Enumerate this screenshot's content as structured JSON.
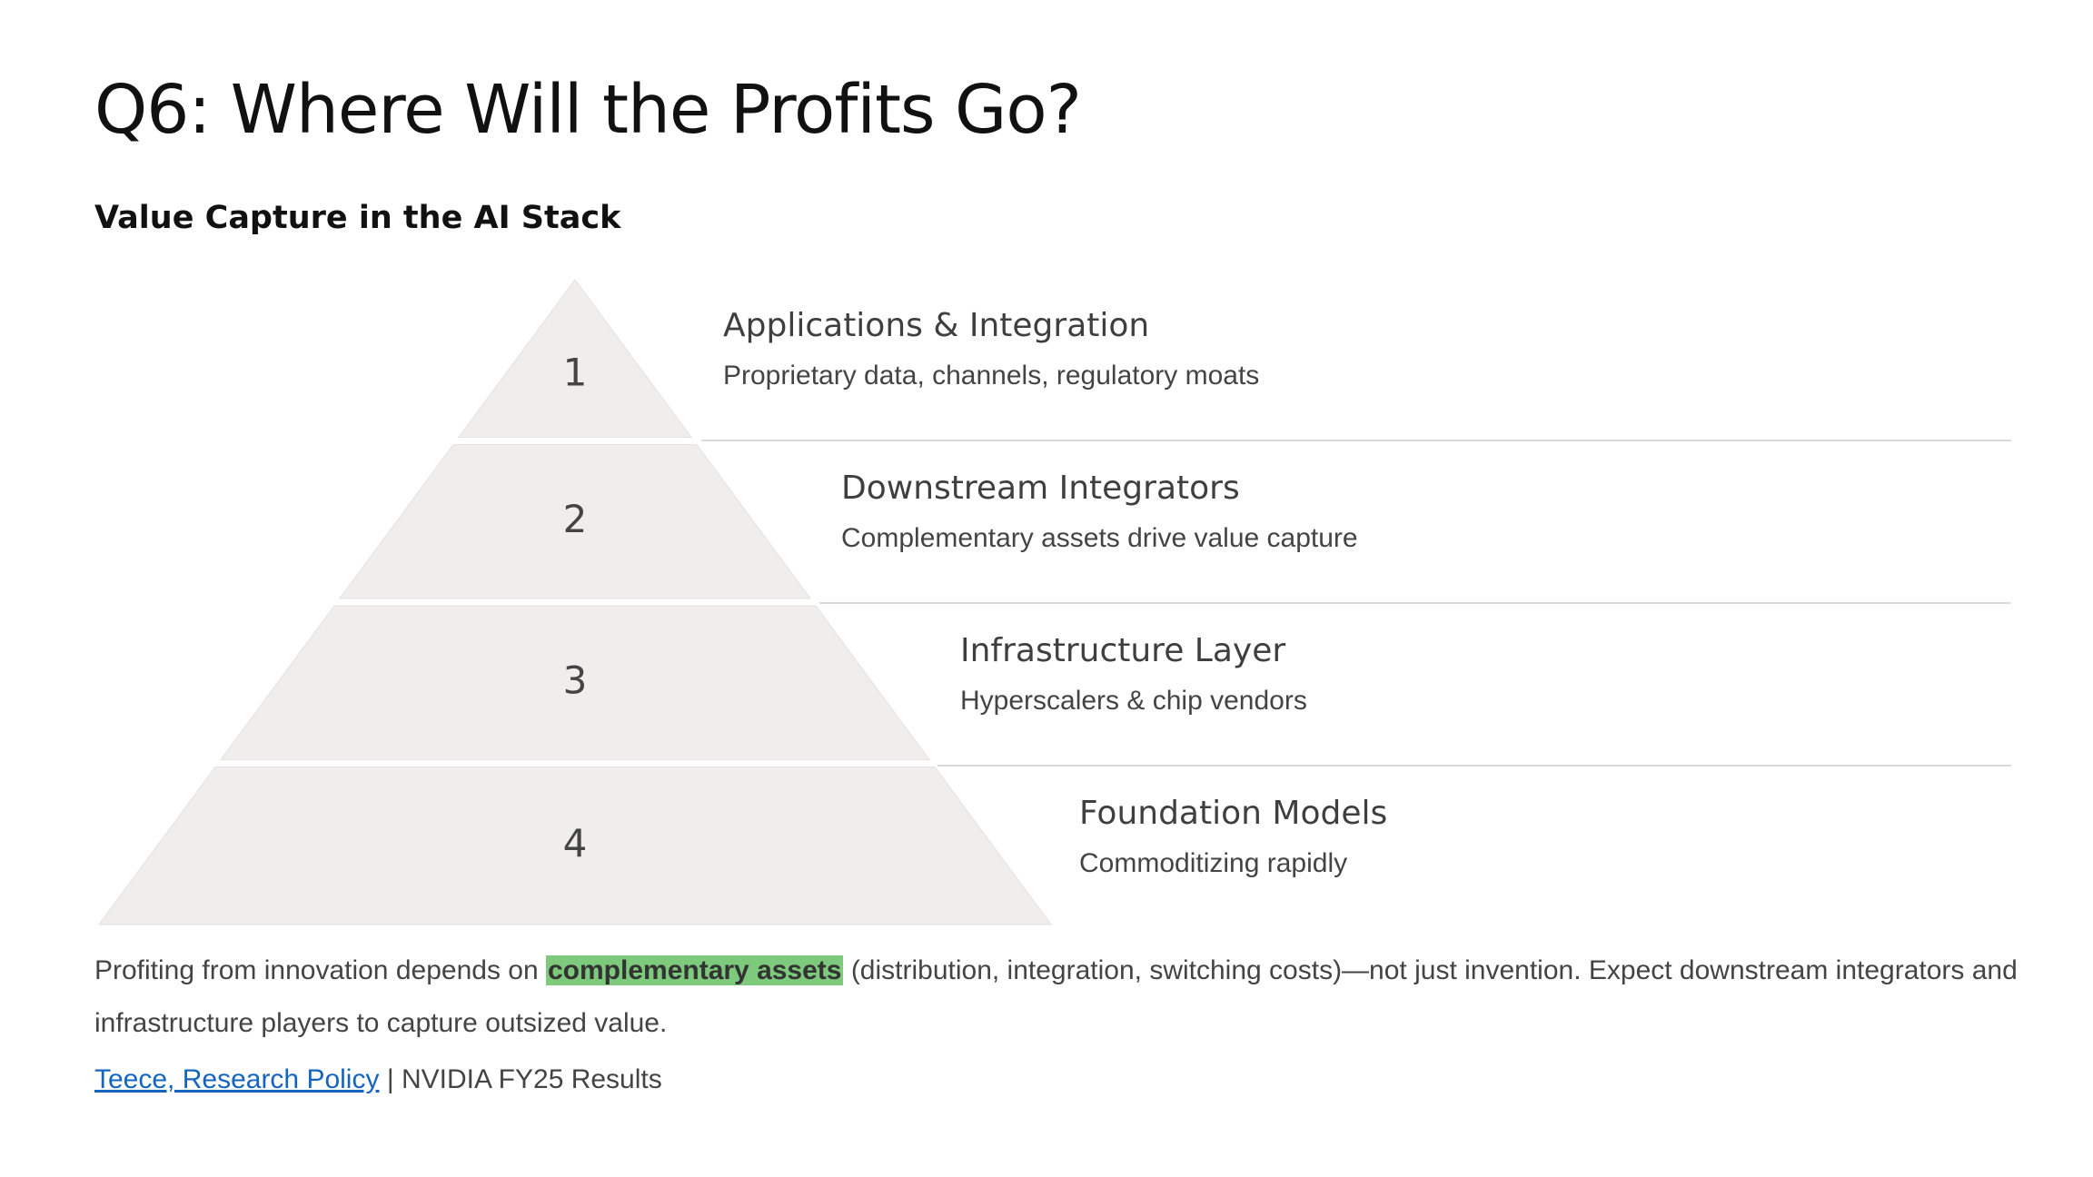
{
  "title": "Q6: Where Will the Profits Go?",
  "subtitle": "Value Capture in the AI Stack",
  "pyramid": {
    "fill_color": "#f0eeec",
    "tiers": [
      {
        "number": "1",
        "title": "Applications & Integration",
        "description": "Proprietary data, channels, regulatory moats"
      },
      {
        "number": "2",
        "title": "Downstream Integrators",
        "description": "Complementary assets drive value capture"
      },
      {
        "number": "3",
        "title": "Infrastructure Layer",
        "description": "Hyperscalers & chip vendors"
      },
      {
        "number": "4",
        "title": "Foundation Models",
        "description": "Commoditizing rapidly"
      }
    ]
  },
  "body": {
    "before": "Profiting from innovation depends on ",
    "highlight": "complementary assets",
    "after": " (distribution, integration, switching costs)—not just invention. Expect downstream integrators and infrastructure players to capture outsized value.",
    "highlight_color": "#7dca7d"
  },
  "sources": {
    "link_text": "Teece, Research Policy",
    "separator": "|",
    "other": "NVIDIA FY25 Results",
    "link_color": "#1565c0"
  }
}
